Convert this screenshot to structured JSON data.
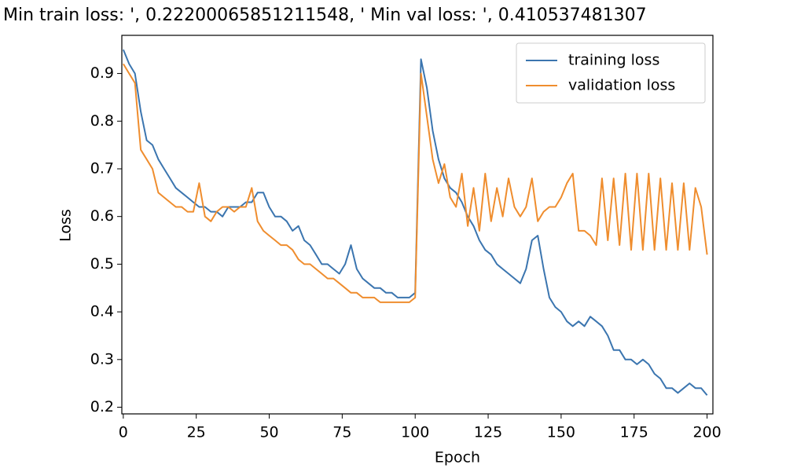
{
  "chart_data": {
    "type": "line",
    "title": "Min train loss: ', 0.22200065851211548, ' Min val loss: ', 0.410537481307",
    "x_label": "Epoch",
    "y_label": "Loss",
    "x": [
      0,
      2,
      4,
      6,
      8,
      10,
      12,
      14,
      16,
      18,
      20,
      22,
      24,
      26,
      28,
      30,
      32,
      34,
      36,
      38,
      40,
      42,
      44,
      46,
      48,
      50,
      52,
      54,
      56,
      58,
      60,
      62,
      64,
      66,
      68,
      70,
      72,
      74,
      76,
      78,
      80,
      82,
      84,
      86,
      88,
      90,
      92,
      94,
      96,
      98,
      100,
      102,
      104,
      106,
      108,
      110,
      112,
      114,
      116,
      118,
      120,
      122,
      124,
      126,
      128,
      130,
      132,
      134,
      136,
      138,
      140,
      142,
      144,
      146,
      148,
      150,
      152,
      154,
      156,
      158,
      160,
      162,
      164,
      166,
      168,
      170,
      172,
      174,
      176,
      178,
      180,
      182,
      184,
      186,
      188,
      190,
      192,
      194,
      196,
      198,
      200
    ],
    "series": [
      {
        "name": "training loss",
        "color": "#3b75af",
        "values": [
          0.95,
          0.92,
          0.9,
          0.82,
          0.76,
          0.75,
          0.72,
          0.7,
          0.68,
          0.66,
          0.65,
          0.64,
          0.63,
          0.62,
          0.62,
          0.61,
          0.61,
          0.6,
          0.62,
          0.62,
          0.62,
          0.63,
          0.63,
          0.65,
          0.65,
          0.62,
          0.6,
          0.6,
          0.59,
          0.57,
          0.58,
          0.55,
          0.54,
          0.52,
          0.5,
          0.5,
          0.49,
          0.48,
          0.5,
          0.54,
          0.49,
          0.47,
          0.46,
          0.45,
          0.45,
          0.44,
          0.44,
          0.43,
          0.43,
          0.43,
          0.44,
          0.93,
          0.87,
          0.78,
          0.72,
          0.68,
          0.66,
          0.65,
          0.63,
          0.6,
          0.58,
          0.55,
          0.53,
          0.52,
          0.5,
          0.49,
          0.48,
          0.47,
          0.46,
          0.49,
          0.55,
          0.56,
          0.49,
          0.43,
          0.41,
          0.4,
          0.38,
          0.37,
          0.38,
          0.37,
          0.39,
          0.38,
          0.37,
          0.35,
          0.32,
          0.32,
          0.3,
          0.3,
          0.29,
          0.3,
          0.29,
          0.27,
          0.26,
          0.24,
          0.24,
          0.23,
          0.24,
          0.25,
          0.24,
          0.24,
          0.225
        ]
      },
      {
        "name": "validation loss",
        "color": "#ef8d2e",
        "values": [
          0.92,
          0.9,
          0.88,
          0.74,
          0.72,
          0.7,
          0.65,
          0.64,
          0.63,
          0.62,
          0.62,
          0.61,
          0.61,
          0.67,
          0.6,
          0.59,
          0.61,
          0.62,
          0.62,
          0.61,
          0.62,
          0.62,
          0.66,
          0.59,
          0.57,
          0.56,
          0.55,
          0.54,
          0.54,
          0.53,
          0.51,
          0.5,
          0.5,
          0.49,
          0.48,
          0.47,
          0.47,
          0.46,
          0.45,
          0.44,
          0.44,
          0.43,
          0.43,
          0.43,
          0.42,
          0.42,
          0.42,
          0.42,
          0.42,
          0.42,
          0.43,
          0.9,
          0.81,
          0.72,
          0.67,
          0.71,
          0.64,
          0.62,
          0.69,
          0.58,
          0.66,
          0.57,
          0.69,
          0.59,
          0.66,
          0.6,
          0.68,
          0.62,
          0.6,
          0.62,
          0.68,
          0.59,
          0.61,
          0.62,
          0.62,
          0.64,
          0.67,
          0.69,
          0.57,
          0.57,
          0.56,
          0.54,
          0.68,
          0.55,
          0.68,
          0.54,
          0.69,
          0.53,
          0.69,
          0.53,
          0.69,
          0.53,
          0.68,
          0.53,
          0.67,
          0.53,
          0.67,
          0.53,
          0.66,
          0.62,
          0.52
        ]
      }
    ],
    "xlim": [
      -0.5,
      202
    ],
    "ylim": [
      0.186,
      0.98
    ],
    "xticks": [
      0,
      25,
      50,
      75,
      100,
      125,
      150,
      175,
      200
    ],
    "yticks": [
      0.2,
      0.3,
      0.4,
      0.5,
      0.6,
      0.7,
      0.8,
      0.9
    ],
    "legend": "upper right"
  }
}
